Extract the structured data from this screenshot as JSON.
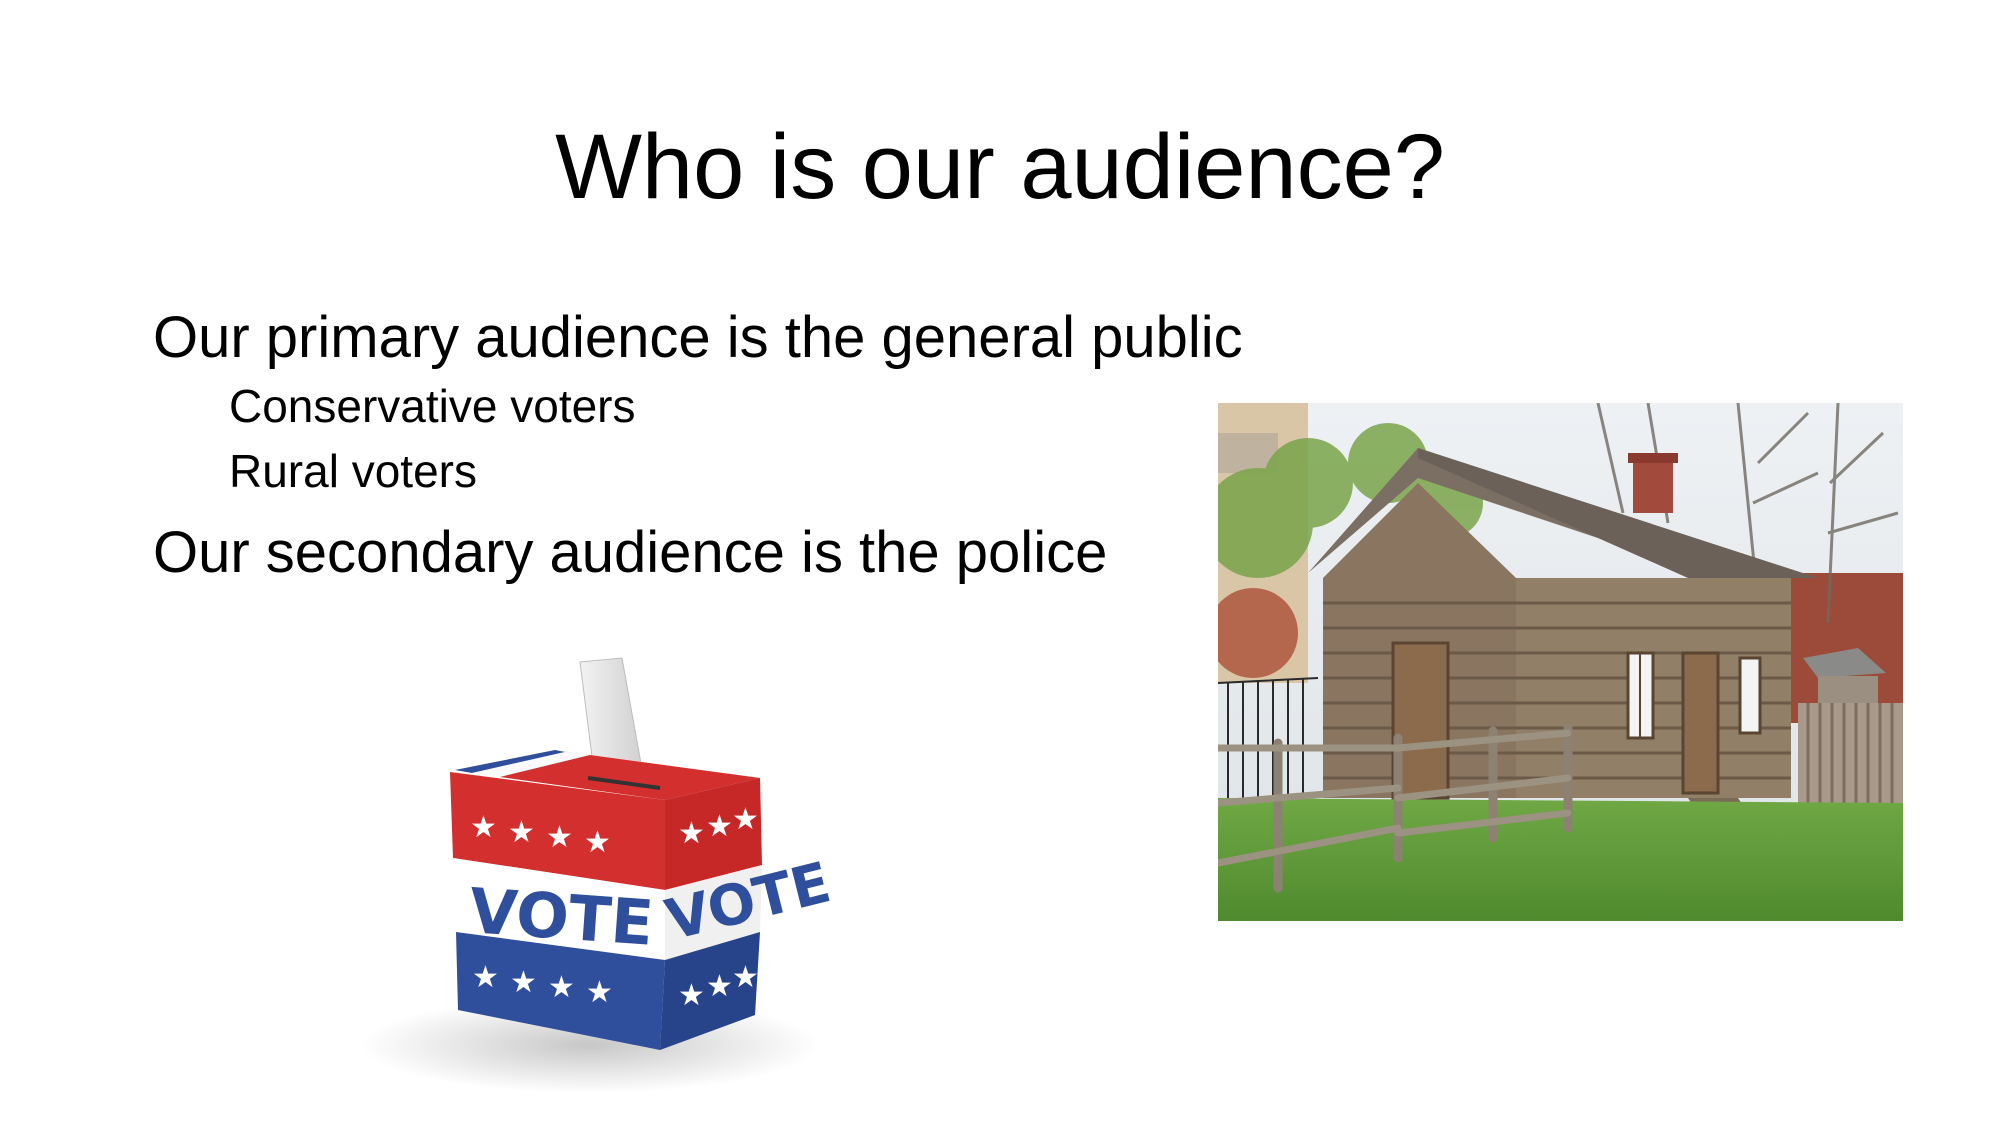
{
  "slide": {
    "title": "Who is our audience?",
    "bullets": [
      {
        "level": 1,
        "text": "Our primary audience is the general public"
      },
      {
        "level": 2,
        "text": "Conservative voters"
      },
      {
        "level": 2,
        "text": "Rural voters"
      },
      {
        "level": 1,
        "text": "Our secondary audience is the police"
      }
    ]
  },
  "images": {
    "ballot_box": {
      "text_front": "VOTE",
      "text_side": "VOTE"
    }
  },
  "colors": {
    "ballot_red": "#d32f2f",
    "ballot_blue": "#2f4f9c",
    "cabin_wood": "#8a7660",
    "grass": "#5f9a3a"
  }
}
